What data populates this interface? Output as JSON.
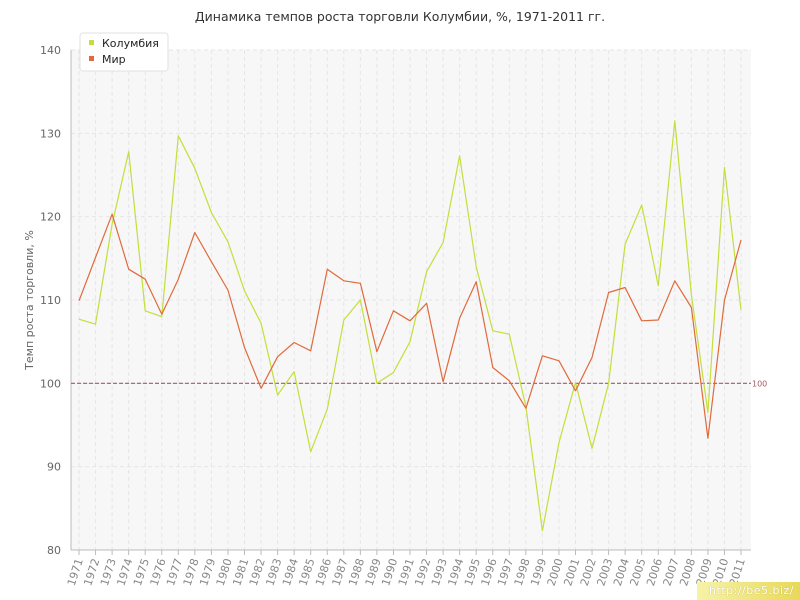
{
  "chart_data": {
    "type": "line",
    "title": "Динамика темпов роста торговли Колумбии, %, 1971-2011 гг.",
    "xlabel": "",
    "ylabel": "Темп роста торговли, %",
    "ylim": [
      80,
      140
    ],
    "yticks": [
      80,
      90,
      100,
      110,
      120,
      130,
      140
    ],
    "grid": true,
    "legend_position": "top-left",
    "x": [
      "1971",
      "1972",
      "1973",
      "1974",
      "1975",
      "1976",
      "1977",
      "1978",
      "1979",
      "1980",
      "1981",
      "1982",
      "1983",
      "1984",
      "1985",
      "1986",
      "1987",
      "1988",
      "1989",
      "1990",
      "1991",
      "1992",
      "1993",
      "1994",
      "1995",
      "1996",
      "1997",
      "1998",
      "1999",
      "2000",
      "2001",
      "2002",
      "2003",
      "2004",
      "2005",
      "2006",
      "2007",
      "2008",
      "2009",
      "2010",
      "2011"
    ],
    "series": [
      {
        "name": "Колумбия",
        "color": "#c2df3c",
        "values": [
          107.7,
          107.1,
          119.1,
          127.8,
          108.7,
          108.0,
          129.7,
          125.8,
          120.5,
          117.0,
          111.1,
          107.2,
          98.6,
          101.4,
          91.8,
          96.9,
          107.6,
          110.0,
          100.0,
          101.3,
          105.0,
          113.4,
          116.9,
          127.3,
          114.0,
          106.3,
          105.9,
          97.2,
          82.3,
          92.9,
          100.1,
          92.2,
          100.0,
          116.7,
          121.4,
          111.7,
          131.5,
          110.6,
          96.5,
          125.9,
          108.8
        ]
      },
      {
        "name": "Мир",
        "color": "#e06a3c",
        "values": [
          109.9,
          115.1,
          120.3,
          113.7,
          112.5,
          108.3,
          112.5,
          118.1,
          114.6,
          111.2,
          104.3,
          99.4,
          103.2,
          104.9,
          103.9,
          113.7,
          112.3,
          112.0,
          103.8,
          108.7,
          107.5,
          109.6,
          100.2,
          107.8,
          112.2,
          101.9,
          100.3,
          97.0,
          103.3,
          102.7,
          99.1,
          103.1,
          110.9,
          111.5,
          107.5,
          107.6,
          112.3,
          109.1,
          93.4,
          110.0,
          117.2
        ]
      }
    ],
    "reference_line": {
      "value": 100,
      "label": "100",
      "color": "#a55b6a"
    }
  },
  "watermark": "http://be5.biz/"
}
